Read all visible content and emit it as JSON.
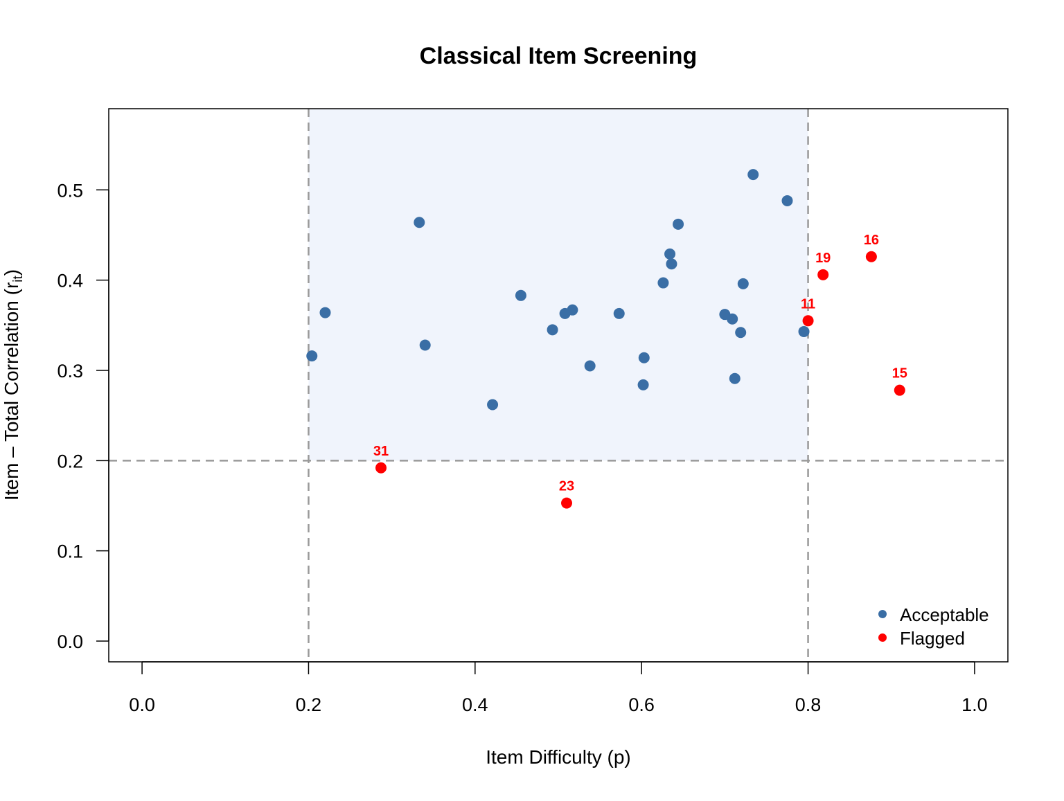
{
  "chart_data": {
    "type": "scatter",
    "title": "Classical Item Screening",
    "xlabel": "Item Difficulty (p)",
    "ylabel_main": "Item – Total Correlation (r",
    "ylabel_sub": "it",
    "ylabel_close": ")",
    "xlim": [
      -0.04,
      1.04
    ],
    "ylim": [
      -0.023,
      0.59
    ],
    "x_ticks": [
      "0.0",
      "0.2",
      "0.4",
      "0.6",
      "0.8",
      "1.0"
    ],
    "y_ticks": [
      "0.0",
      "0.1",
      "0.2",
      "0.3",
      "0.4",
      "0.5"
    ],
    "acceptable_region": {
      "x": [
        0.2,
        0.8
      ],
      "y_min": 0.2
    },
    "reference_lines": {
      "vertical": [
        0.2,
        0.8
      ],
      "horizontal": [
        0.2
      ]
    },
    "legend": {
      "placement": "bottom-right",
      "entries": [
        "Acceptable",
        "Flagged"
      ]
    },
    "colors": {
      "acceptable": "#3a6ea5",
      "flagged": "#ff0000",
      "region": "#f0f4fc",
      "refline": "#999999"
    },
    "series": [
      {
        "name": "Acceptable",
        "points": [
          {
            "x": 0.204,
            "y": 0.316
          },
          {
            "x": 0.22,
            "y": 0.364
          },
          {
            "x": 0.333,
            "y": 0.464
          },
          {
            "x": 0.34,
            "y": 0.328
          },
          {
            "x": 0.421,
            "y": 0.262
          },
          {
            "x": 0.455,
            "y": 0.383
          },
          {
            "x": 0.493,
            "y": 0.345
          },
          {
            "x": 0.508,
            "y": 0.363
          },
          {
            "x": 0.517,
            "y": 0.367
          },
          {
            "x": 0.538,
            "y": 0.305
          },
          {
            "x": 0.573,
            "y": 0.363
          },
          {
            "x": 0.602,
            "y": 0.284
          },
          {
            "x": 0.603,
            "y": 0.314
          },
          {
            "x": 0.626,
            "y": 0.397
          },
          {
            "x": 0.634,
            "y": 0.429
          },
          {
            "x": 0.636,
            "y": 0.418
          },
          {
            "x": 0.644,
            "y": 0.462
          },
          {
            "x": 0.7,
            "y": 0.362
          },
          {
            "x": 0.709,
            "y": 0.357
          },
          {
            "x": 0.712,
            "y": 0.291
          },
          {
            "x": 0.719,
            "y": 0.342
          },
          {
            "x": 0.722,
            "y": 0.396
          },
          {
            "x": 0.734,
            "y": 0.517
          },
          {
            "x": 0.775,
            "y": 0.488
          },
          {
            "x": 0.795,
            "y": 0.343
          }
        ]
      },
      {
        "name": "Flagged",
        "points": [
          {
            "x": 0.287,
            "y": 0.192,
            "label": "31"
          },
          {
            "x": 0.51,
            "y": 0.153,
            "label": "23"
          },
          {
            "x": 0.8,
            "y": 0.355,
            "label": "11"
          },
          {
            "x": 0.818,
            "y": 0.406,
            "label": "19"
          },
          {
            "x": 0.876,
            "y": 0.426,
            "label": "16"
          },
          {
            "x": 0.91,
            "y": 0.278,
            "label": "15"
          }
        ]
      }
    ]
  }
}
